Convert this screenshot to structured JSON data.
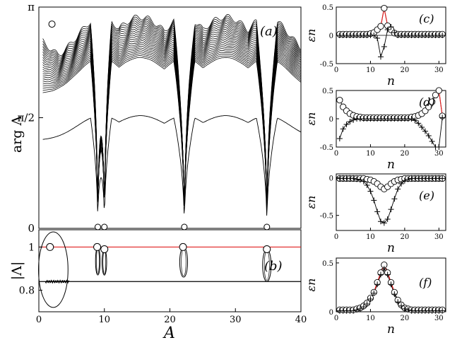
{
  "chart_data": [
    {
      "id": "a",
      "type": "line",
      "panel_label": "(a)",
      "xlabel": "A",
      "ylabel": "arg Λ",
      "xlim": [
        0,
        40
      ],
      "ylim": [
        0,
        3.1416
      ],
      "x_ticks": [
        0,
        10,
        20,
        30,
        40
      ],
      "x_ticks_shown": false,
      "y_ticks": [
        {
          "value": 0,
          "label": "0"
        },
        {
          "value": 1.5708,
          "label": "π/2"
        },
        {
          "value": 3.1416,
          "label": "π"
        }
      ],
      "series_count": 25,
      "curve_ranges": {
        "outer_max": 3.0,
        "outer_min": 2.4,
        "lowest_max": 1.6,
        "dips_to_zero_at": [
          9.0,
          10.0,
          22.2,
          34.8
        ],
        "arch_peaks_at": [
          9.5,
          15.5,
          22.2,
          28.5,
          34.8
        ]
      },
      "markers": [
        {
          "x": 2.0,
          "y": 2.9,
          "shape": "circle"
        }
      ],
      "grid": false
    },
    {
      "id": "b",
      "type": "line",
      "panel_label": "(b)",
      "xlabel": "A",
      "ylabel": "|Λ|",
      "xlim": [
        0,
        40
      ],
      "ylim": [
        0.7,
        1.08
      ],
      "x_ticks": [
        {
          "value": 0,
          "label": "0"
        },
        {
          "value": 10,
          "label": "10"
        },
        {
          "value": 20,
          "label": "20"
        },
        {
          "value": 30,
          "label": "30"
        },
        {
          "value": 40,
          "label": "40"
        }
      ],
      "y_ticks": [
        {
          "value": 0.8,
          "label": "0.8"
        },
        {
          "value": 1.0,
          "label": "1"
        }
      ],
      "reference_lines": [
        {
          "y": 1.0,
          "color": "#e02020"
        },
        {
          "y": 0.84,
          "color": "#000000"
        }
      ],
      "loops": [
        {
          "x_center": 2.2,
          "width": 4.5,
          "y_min": 0.72,
          "y_max": 1.07
        },
        {
          "x_center": 9.0,
          "width": 0.7,
          "y_min": 0.87,
          "y_max": 1.0
        },
        {
          "x_center": 10.0,
          "width": 0.7,
          "y_min": 0.87,
          "y_max": 0.99
        },
        {
          "x_center": 22.1,
          "width": 1.2,
          "y_min": 0.86,
          "y_max": 1.0
        },
        {
          "x_center": 34.8,
          "width": 1.3,
          "y_min": 0.84,
          "y_max": 0.99
        }
      ],
      "markers": [
        {
          "x": 1.7,
          "y": 1.0
        },
        {
          "x": 8.9,
          "y": 1.0
        },
        {
          "x": 10.0,
          "y": 0.99
        },
        {
          "x": 22.0,
          "y": 1.0
        },
        {
          "x": 34.8,
          "y": 0.99
        }
      ],
      "grid": false
    },
    {
      "id": "c",
      "type": "line",
      "panel_label": "(c)",
      "xlabel": "n",
      "ylabel": "εn",
      "xlim": [
        0,
        32
      ],
      "ylim": [
        -0.5,
        0.5
      ],
      "x_ticks": [
        {
          "value": 0,
          "label": "0"
        },
        {
          "value": 10,
          "label": "10"
        },
        {
          "value": 20,
          "label": "20"
        },
        {
          "value": 30,
          "label": "30"
        }
      ],
      "y_ticks": [
        {
          "value": -0.5,
          "label": "-0.5"
        },
        {
          "value": 0,
          "label": "0"
        },
        {
          "value": 0.5,
          "label": "0.5"
        }
      ],
      "zero_line": true,
      "series": [
        {
          "marker": "circle",
          "color": "#000000",
          "x": [
            1,
            2,
            3,
            4,
            5,
            6,
            7,
            8,
            9,
            10,
            11,
            12,
            13,
            14,
            15,
            16,
            17,
            18,
            19,
            20,
            21,
            22,
            23,
            24,
            25,
            26,
            27,
            28,
            29,
            30,
            31
          ],
          "values": [
            0.02,
            0.02,
            0.02,
            0.02,
            0.02,
            0.02,
            0.02,
            0.02,
            0.02,
            0.03,
            0.05,
            0.1,
            0.16,
            0.48,
            0.17,
            0.1,
            0.04,
            0.02,
            0.02,
            0.02,
            0.02,
            0.02,
            0.02,
            0.02,
            0.02,
            0.02,
            0.02,
            0.02,
            0.02,
            0.02,
            0.02
          ]
        },
        {
          "marker": "plus",
          "color": "#000000",
          "x": [
            1,
            2,
            3,
            4,
            5,
            6,
            7,
            8,
            9,
            10,
            11,
            12,
            13,
            14,
            15,
            16,
            17,
            18,
            19,
            20,
            21,
            22,
            23,
            24,
            25,
            26,
            27,
            28,
            29,
            30,
            31
          ],
          "values": [
            0,
            0,
            0,
            0,
            0,
            0,
            0,
            0,
            0,
            0,
            0,
            -0.05,
            -0.38,
            -0.2,
            0.1,
            0.15,
            0.05,
            0,
            0,
            0,
            0,
            0,
            0,
            0,
            0,
            0,
            0,
            0,
            0,
            0,
            0
          ]
        },
        {
          "marker": "none",
          "color": "#e02020",
          "x": [
            12,
            13,
            14,
            15,
            16
          ],
          "values": [
            0.1,
            0.16,
            0.48,
            0.17,
            0.1
          ]
        }
      ]
    },
    {
      "id": "d",
      "type": "line",
      "panel_label": "(d)",
      "xlabel": "n",
      "ylabel": "εn",
      "xlim": [
        0,
        32
      ],
      "ylim": [
        -0.5,
        0.5
      ],
      "x_ticks": [
        {
          "value": 0,
          "label": "0"
        },
        {
          "value": 10,
          "label": "10"
        },
        {
          "value": 20,
          "label": "20"
        },
        {
          "value": 30,
          "label": "30"
        }
      ],
      "y_ticks": [
        {
          "value": -0.5,
          "label": "-0.5"
        },
        {
          "value": 0,
          "label": "0"
        },
        {
          "value": 0.5,
          "label": "0.5"
        }
      ],
      "zero_line": false,
      "series": [
        {
          "marker": "circle",
          "color": "#000000",
          "x": [
            1,
            2,
            3,
            4,
            5,
            6,
            7,
            8,
            9,
            10,
            11,
            12,
            13,
            14,
            15,
            16,
            17,
            18,
            19,
            20,
            21,
            22,
            23,
            24,
            25,
            26,
            27,
            28,
            29,
            30,
            31
          ],
          "values": [
            0.33,
            0.21,
            0.14,
            0.09,
            0.06,
            0.04,
            0.03,
            0.02,
            0.02,
            0.02,
            0.02,
            0.02,
            0.02,
            0.02,
            0.02,
            0.02,
            0.02,
            0.02,
            0.02,
            0.02,
            0.02,
            0.03,
            0.04,
            0.06,
            0.09,
            0.14,
            0.21,
            0.3,
            0.42,
            0.5,
            0.05
          ]
        },
        {
          "marker": "plus",
          "color": "#000000",
          "x": [
            1,
            2,
            3,
            4,
            5,
            6,
            7,
            8,
            9,
            10,
            11,
            12,
            13,
            14,
            15,
            16,
            17,
            18,
            19,
            20,
            21,
            22,
            23,
            24,
            25,
            26,
            27,
            28,
            29,
            30,
            31
          ],
          "values": [
            -0.35,
            -0.18,
            -0.1,
            -0.05,
            -0.02,
            0,
            0,
            0,
            0,
            0,
            0,
            0,
            0,
            0,
            0,
            0,
            0,
            0,
            0,
            0,
            0,
            0,
            -0.03,
            -0.08,
            -0.15,
            -0.22,
            -0.3,
            -0.4,
            -0.5,
            -0.5,
            0.02
          ]
        },
        {
          "marker": "none",
          "color": "#e02020",
          "x": [
            29,
            30,
            31
          ],
          "values": [
            0.42,
            0.5,
            0.05
          ]
        }
      ]
    },
    {
      "id": "e",
      "type": "line",
      "panel_label": "(e)",
      "xlabel": "n",
      "ylabel": "εn",
      "xlim": [
        0,
        32
      ],
      "ylim": [
        -0.7,
        0.05
      ],
      "x_ticks": [
        {
          "value": 0,
          "label": "0"
        },
        {
          "value": 10,
          "label": "10"
        },
        {
          "value": 20,
          "label": "20"
        },
        {
          "value": 30,
          "label": "30"
        }
      ],
      "y_ticks": [
        {
          "value": -0.5,
          "label": "-0.5"
        },
        {
          "value": 0,
          "label": "0"
        }
      ],
      "zero_line": false,
      "series": [
        {
          "marker": "circle",
          "color": "#000000",
          "x": [
            1,
            2,
            3,
            4,
            5,
            6,
            7,
            8,
            9,
            10,
            11,
            12,
            13,
            14,
            15,
            16,
            17,
            18,
            19,
            20,
            21,
            22,
            23,
            24,
            25,
            26,
            27,
            28,
            29,
            30,
            31
          ],
          "values": [
            -0.01,
            -0.01,
            -0.01,
            -0.01,
            -0.01,
            -0.01,
            -0.01,
            -0.01,
            -0.02,
            -0.03,
            -0.05,
            -0.08,
            -0.12,
            -0.15,
            -0.12,
            -0.08,
            -0.05,
            -0.03,
            -0.02,
            -0.01,
            -0.01,
            -0.01,
            -0.01,
            -0.01,
            -0.01,
            -0.01,
            -0.01,
            -0.01,
            -0.01,
            -0.01,
            -0.01
          ]
        },
        {
          "marker": "plus",
          "color": "#000000",
          "x": [
            1,
            2,
            3,
            4,
            5,
            6,
            7,
            8,
            9,
            10,
            11,
            12,
            13,
            14,
            15,
            16,
            17,
            18,
            19,
            20,
            21,
            22,
            23,
            24,
            25,
            26,
            27,
            28,
            29,
            30,
            31
          ],
          "values": [
            -0.01,
            -0.01,
            -0.01,
            -0.01,
            -0.01,
            -0.02,
            -0.03,
            -0.05,
            -0.1,
            -0.18,
            -0.3,
            -0.45,
            -0.58,
            -0.6,
            -0.55,
            -0.42,
            -0.28,
            -0.15,
            -0.08,
            -0.04,
            -0.02,
            -0.01,
            -0.01,
            -0.01,
            -0.01,
            -0.01,
            -0.01,
            -0.01,
            -0.01,
            -0.01,
            -0.01
          ]
        },
        {
          "marker": "none",
          "color": "#e02020",
          "x": [
            12,
            13,
            14,
            15,
            16
          ],
          "values": [
            -0.08,
            -0.12,
            -0.15,
            -0.12,
            -0.08
          ]
        }
      ]
    },
    {
      "id": "f",
      "type": "line",
      "panel_label": "(f)",
      "xlabel": "n",
      "ylabel": "εn",
      "xlim": [
        0,
        32
      ],
      "ylim": [
        0,
        0.55
      ],
      "x_ticks": [
        {
          "value": 0,
          "label": "0"
        },
        {
          "value": 10,
          "label": "10"
        },
        {
          "value": 20,
          "label": "20"
        },
        {
          "value": 30,
          "label": "30"
        }
      ],
      "y_ticks": [
        {
          "value": 0,
          "label": "0"
        },
        {
          "value": 0.5,
          "label": "0.5"
        }
      ],
      "zero_line": false,
      "series": [
        {
          "marker": "circle",
          "color": "#000000",
          "x": [
            1,
            2,
            3,
            4,
            5,
            6,
            7,
            8,
            9,
            10,
            11,
            12,
            13,
            14,
            15,
            16,
            17,
            18,
            19,
            20,
            21,
            22,
            23,
            24,
            25,
            26,
            27,
            28,
            29,
            30,
            31
          ],
          "values": [
            0.02,
            0.02,
            0.02,
            0.02,
            0.02,
            0.03,
            0.04,
            0.06,
            0.09,
            0.14,
            0.2,
            0.3,
            0.4,
            0.48,
            0.4,
            0.3,
            0.2,
            0.12,
            0.07,
            0.04,
            0.03,
            0.02,
            0.02,
            0.02,
            0.02,
            0.02,
            0.02,
            0.02,
            0.02,
            0.02,
            0.02
          ]
        },
        {
          "marker": "plus",
          "color": "#000000",
          "x": [
            1,
            2,
            3,
            4,
            5,
            6,
            7,
            8,
            9,
            10,
            11,
            12,
            13,
            14,
            15,
            16,
            17,
            18,
            19,
            20,
            21,
            22,
            23,
            24,
            25,
            26,
            27,
            28,
            29,
            30,
            31
          ],
          "values": [
            0.01,
            0.01,
            0.01,
            0.01,
            0.01,
            0.02,
            0.03,
            0.05,
            0.08,
            0.13,
            0.19,
            0.28,
            0.38,
            0.44,
            0.38,
            0.28,
            0.18,
            0.1,
            0.06,
            0.03,
            0.02,
            0.01,
            0.01,
            0.01,
            0.01,
            0.01,
            0.01,
            0.01,
            0.01,
            0.01,
            0.01
          ]
        },
        {
          "marker": "none",
          "color": "#e02020",
          "x": [
            11,
            12,
            13,
            14,
            15,
            16,
            17
          ],
          "values": [
            0.2,
            0.3,
            0.4,
            0.48,
            0.4,
            0.3,
            0.2
          ]
        }
      ]
    }
  ]
}
